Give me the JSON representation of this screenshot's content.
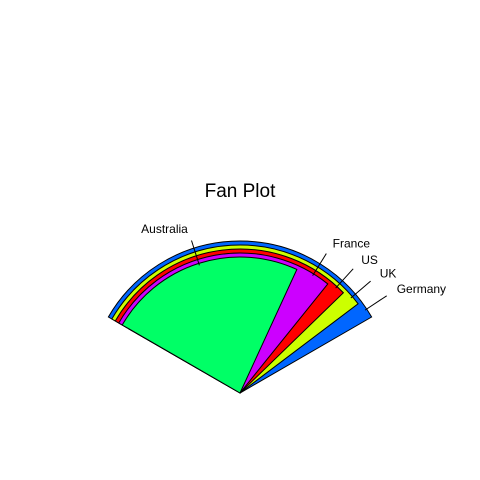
{
  "chart_data": {
    "type": "fan",
    "title": "Fan Plot",
    "xlabel": "",
    "ylabel": "",
    "slices": [
      {
        "label": "Australia",
        "value": 12,
        "color": "#00FF66"
      },
      {
        "label": "France",
        "value": 14,
        "color": "#CC00FF"
      },
      {
        "label": "US",
        "value": 15,
        "color": "#FF0000"
      },
      {
        "label": "UK",
        "value": 16,
        "color": "#CCFF00"
      },
      {
        "label": "Germany",
        "value": 17,
        "color": "#0066FF"
      }
    ],
    "stacking": "largest value drawn as the widest sector, smaller sectors nested in front",
    "grid": false,
    "legend": "none (slices labeled directly)"
  }
}
